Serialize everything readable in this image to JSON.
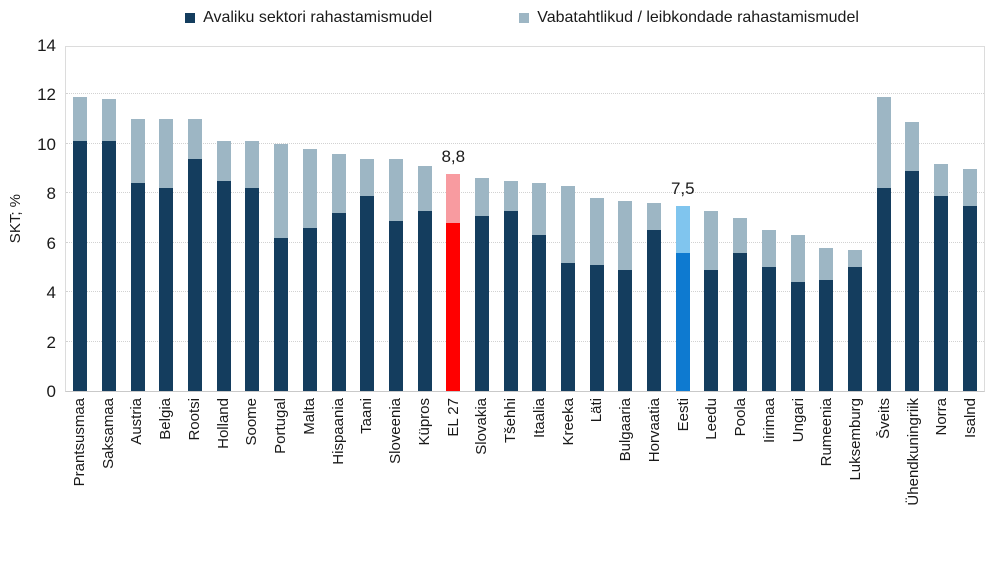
{
  "chart_data": {
    "type": "bar",
    "stacked": true,
    "title": "",
    "xlabel": "",
    "ylabel": "SKT; %",
    "ylim": [
      0,
      14
    ],
    "ytick_step": 2,
    "grid": "horizontal-dotted",
    "legend_position": "top",
    "decimal_separator": ",",
    "categories": [
      "Prantsusmaa",
      "Saksamaa",
      "Austria",
      "Belgia",
      "Rootsi",
      "Holland",
      "Soome",
      "Portugal",
      "Malta",
      "Hispaania",
      "Taani",
      "Sloveenia",
      "Küpros",
      "EL 27",
      "Slovakia",
      "Tšehhi",
      "Itaalia",
      "Kreeka",
      "Läti",
      "Bulgaaria",
      "Horvaatia",
      "Eesti",
      "Leedu",
      "Poola",
      "Iirimaa",
      "Ungari",
      "Rumeenia",
      "Luksemburg",
      "Šveits",
      "Ühendkuningriik",
      "Norra",
      "Isalnd"
    ],
    "series": [
      {
        "name": "Avaliku sektori rahastamismudel",
        "color": "#143d5e",
        "values": [
          10.1,
          10.1,
          8.4,
          8.2,
          9.4,
          8.5,
          8.2,
          6.2,
          6.6,
          7.2,
          7.9,
          6.9,
          7.3,
          6.8,
          7.1,
          7.3,
          6.3,
          5.2,
          5.1,
          4.9,
          6.5,
          5.6,
          4.9,
          5.6,
          5.0,
          4.4,
          4.5,
          5.0,
          8.2,
          8.9,
          7.9,
          7.5
        ]
      },
      {
        "name": "Vabatahtlikud / leibkondade rahastamismudel",
        "color": "#9db6c4",
        "values": [
          1.8,
          1.7,
          2.6,
          2.8,
          1.6,
          1.6,
          1.9,
          3.8,
          3.2,
          2.4,
          1.5,
          2.5,
          1.8,
          2.0,
          1.5,
          1.2,
          2.1,
          3.1,
          2.7,
          2.8,
          1.1,
          1.9,
          2.4,
          1.4,
          1.5,
          1.9,
          1.3,
          0.7,
          3.7,
          2.0,
          1.3,
          1.5
        ]
      }
    ],
    "totals": [
      11.9,
      11.8,
      11.0,
      11.0,
      11.0,
      10.1,
      10.1,
      10.0,
      9.8,
      9.6,
      9.4,
      9.4,
      9.1,
      8.8,
      8.6,
      8.5,
      8.4,
      8.3,
      7.8,
      7.7,
      7.6,
      7.5,
      7.3,
      7.0,
      6.5,
      6.3,
      5.8,
      5.7,
      11.9,
      10.9,
      9.2,
      9.0
    ],
    "highlighted_bars": [
      {
        "category": "EL 27",
        "public_color": "#ff0000",
        "voluntary_color": "#f89ba0",
        "label": "8,8"
      },
      {
        "category": "Eesti",
        "public_color": "#0e7ad0",
        "voluntary_color": "#80c5ee",
        "label": "7,5"
      }
    ],
    "axis_text_color": "#1a1a1a",
    "gridline_color": "#d2d2d2",
    "plot_border_color": "#dcdcdc"
  }
}
